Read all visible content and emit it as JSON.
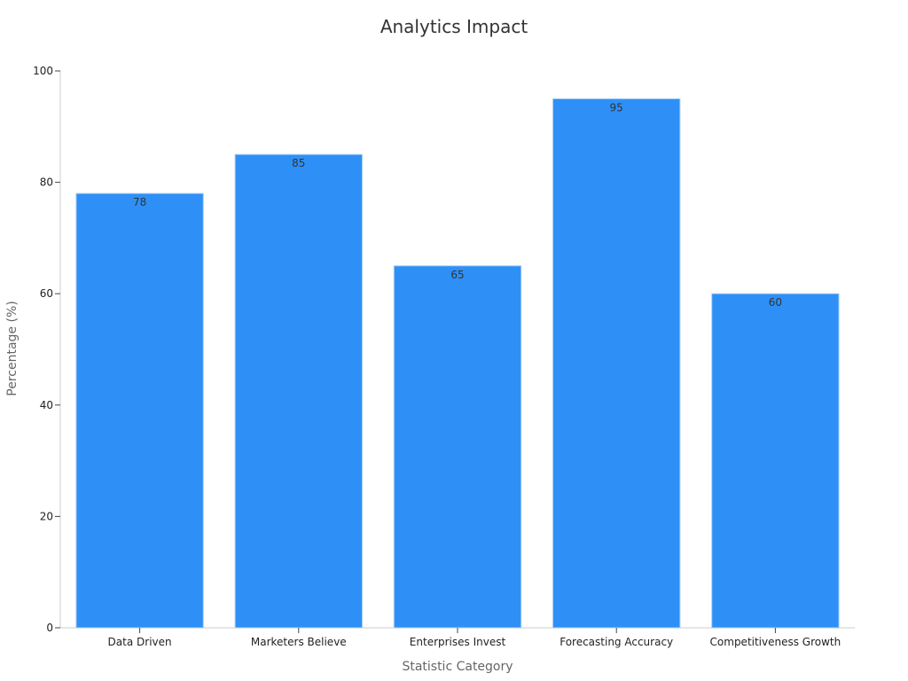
{
  "chart_data": {
    "type": "bar",
    "title": "Analytics Impact",
    "xlabel": "Statistic Category",
    "ylabel": "Percentage (%)",
    "categories": [
      "Data Driven",
      "Marketers Believe",
      "Enterprises Invest",
      "Forecasting Accuracy",
      "Competitiveness Growth"
    ],
    "values": [
      78,
      85,
      65,
      95,
      60
    ],
    "ylim": [
      0,
      100
    ],
    "yticks": [
      0,
      20,
      40,
      60,
      80,
      100
    ],
    "bar_color": "#2e90f7",
    "bar_edge_color": "#a9cdf5",
    "grid": false,
    "legend": "none"
  }
}
